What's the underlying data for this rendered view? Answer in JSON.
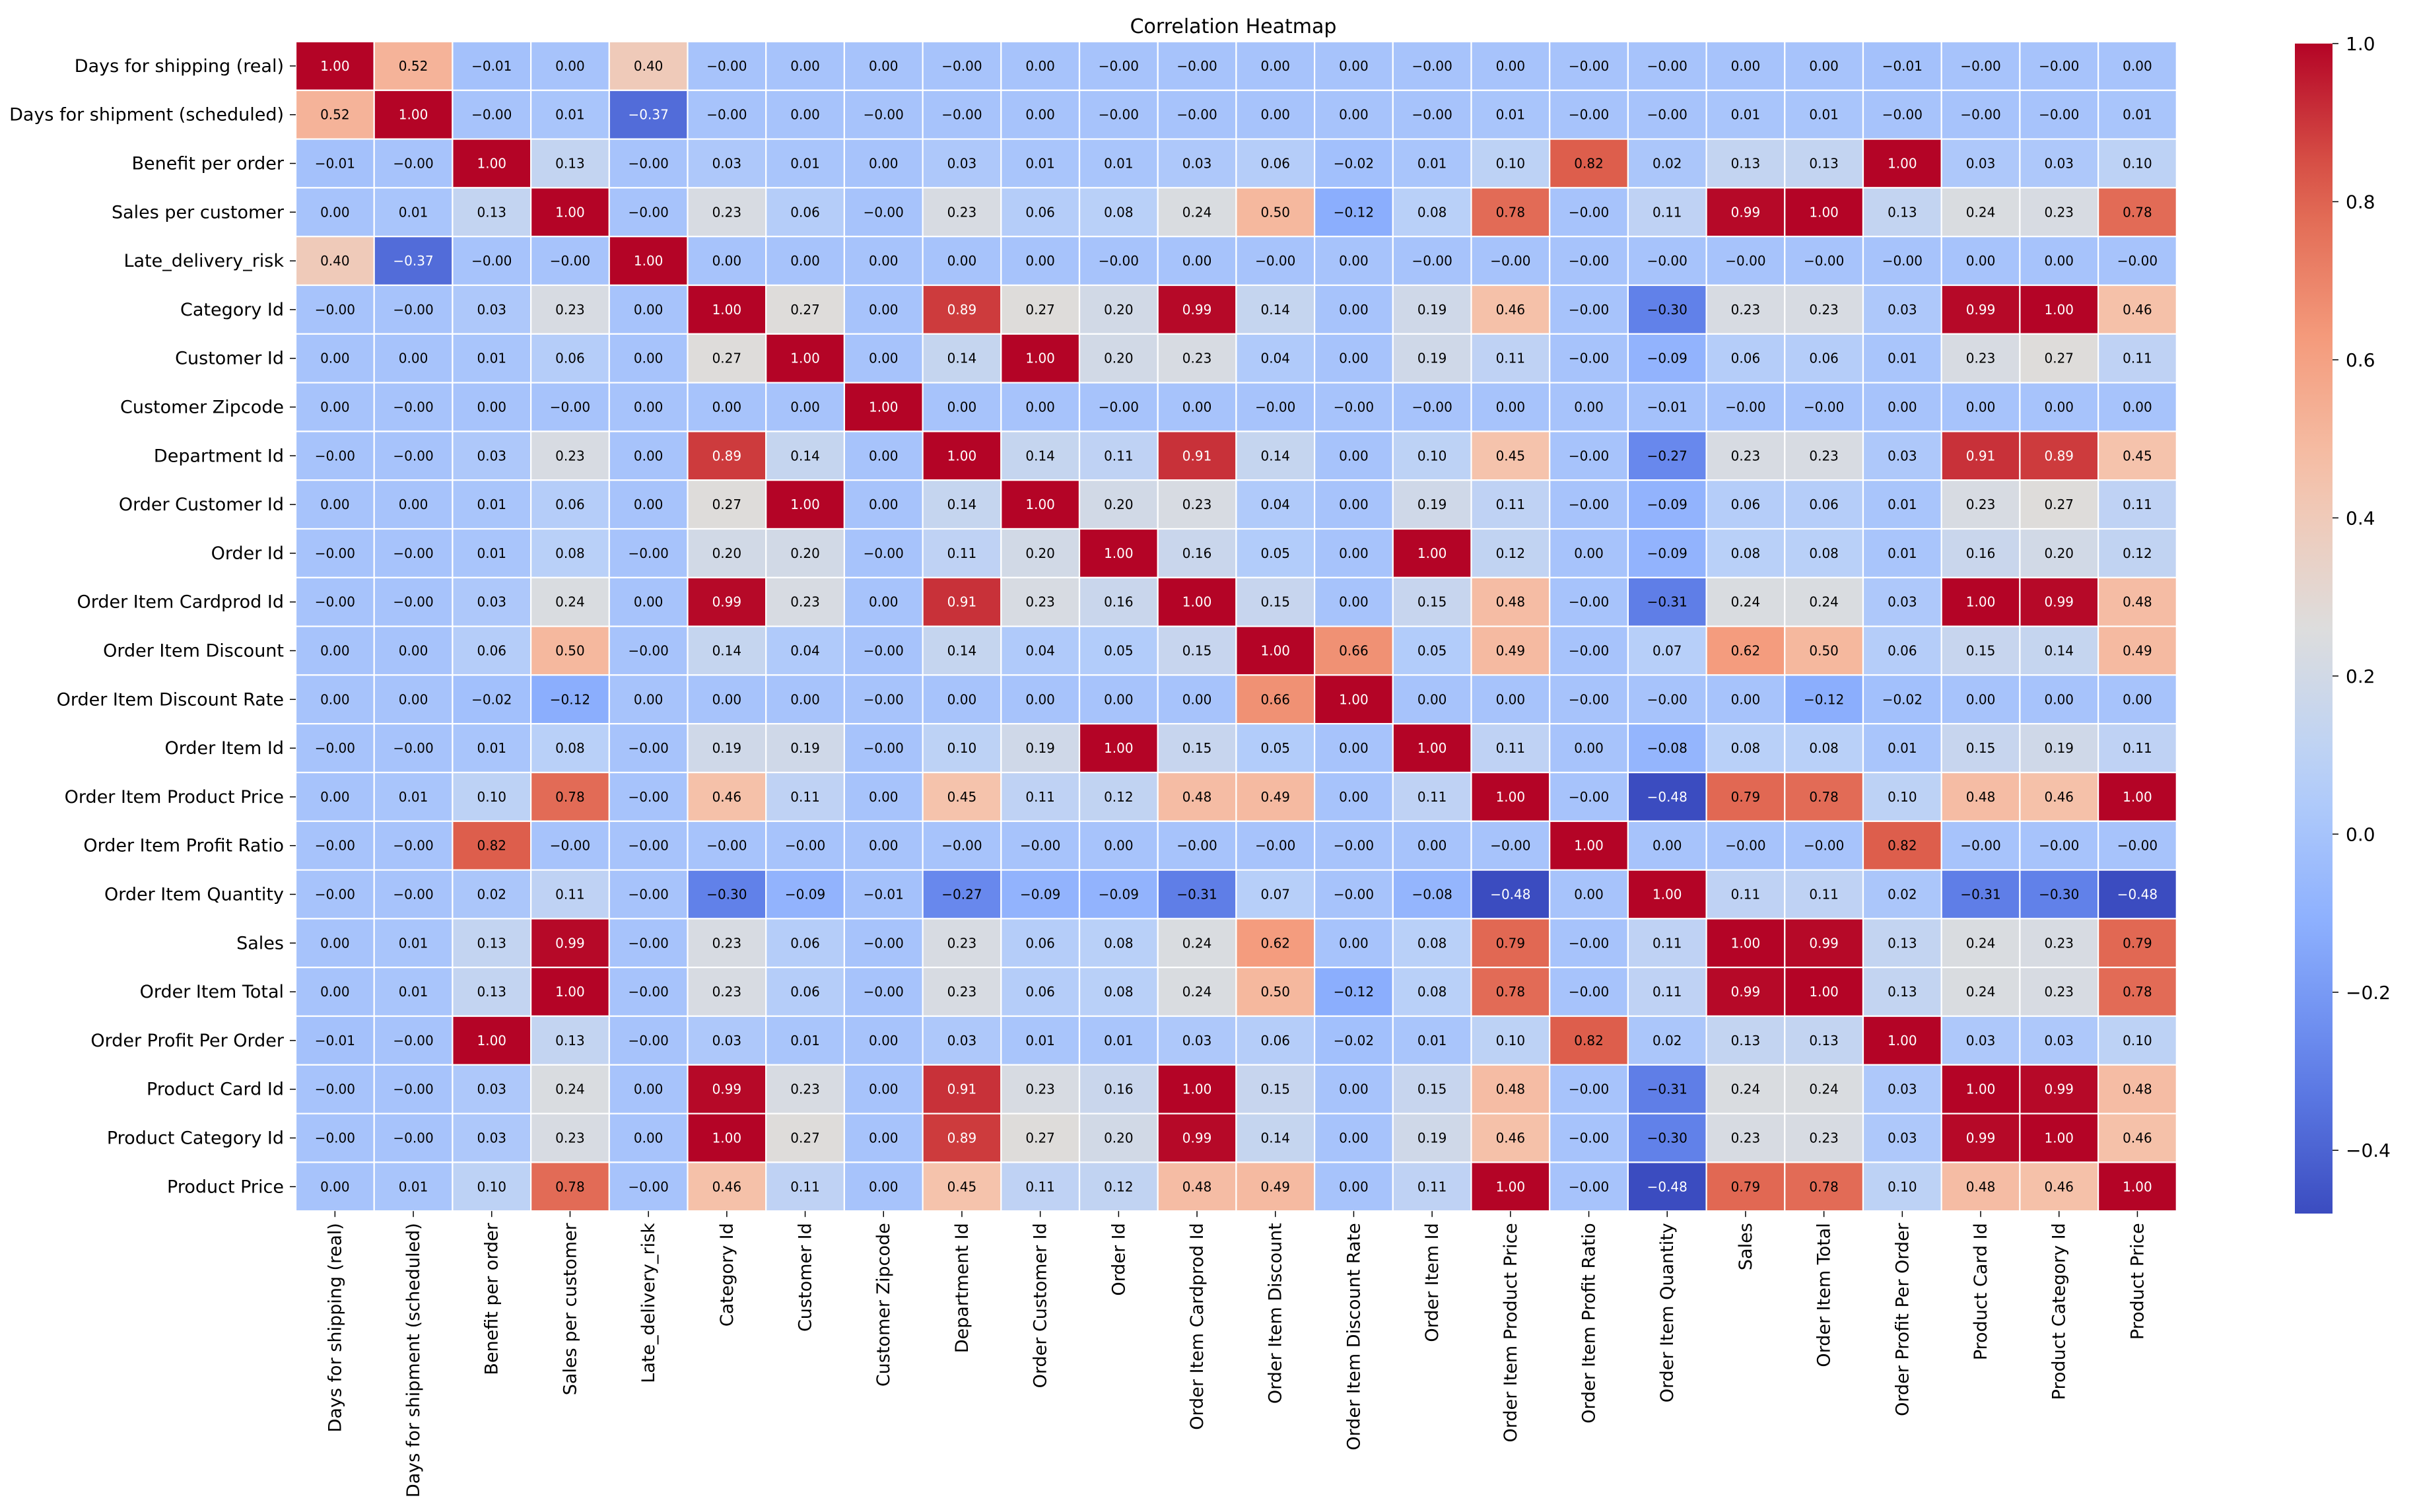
{
  "chart_data": {
    "type": "heatmap",
    "title": "Correlation Heatmap",
    "xlabel": "",
    "ylabel": "",
    "colormap": "coolwarm",
    "vmin": -0.48,
    "vmax": 1.0,
    "colorbar_ticks": [
      {
        "value": 1.0,
        "label": "1.0"
      },
      {
        "value": 0.8,
        "label": "0.8"
      },
      {
        "value": 0.6,
        "label": "0.6"
      },
      {
        "value": 0.4,
        "label": "0.4"
      },
      {
        "value": 0.2,
        "label": "0.2"
      },
      {
        "value": 0.0,
        "label": "0.0"
      },
      {
        "value": -0.2,
        "label": "−0.2"
      },
      {
        "value": -0.4,
        "label": "−0.4"
      }
    ],
    "labels": [
      "Days for shipping (real)",
      "Days for shipment (scheduled)",
      "Benefit per order",
      "Sales per customer",
      "Late_delivery_risk",
      "Category Id",
      "Customer Id",
      "Customer Zipcode",
      "Department Id",
      "Order Customer Id",
      "Order Id",
      "Order Item Cardprod Id",
      "Order Item Discount",
      "Order Item Discount Rate",
      "Order Item Id",
      "Order Item Product Price",
      "Order Item Profit Ratio",
      "Order Item Quantity",
      "Sales",
      "Order Item Total",
      "Order Profit Per Order",
      "Product Card Id",
      "Product Category Id",
      "Product Price"
    ],
    "values": [
      [
        1.0,
        0.52,
        -0.01,
        0.0,
        0.4,
        -0.0,
        0.0,
        0.0,
        -0.0,
        0.0,
        -0.0,
        -0.0,
        0.0,
        0.0,
        -0.0,
        0.0,
        -0.0,
        -0.0,
        0.0,
        0.0,
        -0.01,
        -0.0,
        -0.0,
        0.0
      ],
      [
        0.52,
        1.0,
        -0.0,
        0.01,
        -0.37,
        -0.0,
        0.0,
        -0.0,
        -0.0,
        0.0,
        -0.0,
        -0.0,
        0.0,
        0.0,
        -0.0,
        0.01,
        -0.0,
        -0.0,
        0.01,
        0.01,
        -0.0,
        -0.0,
        -0.0,
        0.01
      ],
      [
        -0.01,
        -0.0,
        1.0,
        0.13,
        -0.0,
        0.03,
        0.01,
        0.0,
        0.03,
        0.01,
        0.01,
        0.03,
        0.06,
        -0.02,
        0.01,
        0.1,
        0.82,
        0.02,
        0.13,
        0.13,
        1.0,
        0.03,
        0.03,
        0.1
      ],
      [
        0.0,
        0.01,
        0.13,
        1.0,
        -0.0,
        0.23,
        0.06,
        -0.0,
        0.23,
        0.06,
        0.08,
        0.24,
        0.5,
        -0.12,
        0.08,
        0.78,
        -0.0,
        0.11,
        0.99,
        1.0,
        0.13,
        0.24,
        0.23,
        0.78
      ],
      [
        0.4,
        -0.37,
        -0.0,
        -0.0,
        1.0,
        0.0,
        0.0,
        0.0,
        0.0,
        0.0,
        -0.0,
        0.0,
        -0.0,
        0.0,
        -0.0,
        -0.0,
        -0.0,
        -0.0,
        -0.0,
        -0.0,
        -0.0,
        0.0,
        0.0,
        -0.0
      ],
      [
        -0.0,
        -0.0,
        0.03,
        0.23,
        0.0,
        1.0,
        0.27,
        0.0,
        0.89,
        0.27,
        0.2,
        0.99,
        0.14,
        0.0,
        0.19,
        0.46,
        -0.0,
        -0.3,
        0.23,
        0.23,
        0.03,
        0.99,
        1.0,
        0.46
      ],
      [
        0.0,
        0.0,
        0.01,
        0.06,
        0.0,
        0.27,
        1.0,
        0.0,
        0.14,
        1.0,
        0.2,
        0.23,
        0.04,
        0.0,
        0.19,
        0.11,
        -0.0,
        -0.09,
        0.06,
        0.06,
        0.01,
        0.23,
        0.27,
        0.11
      ],
      [
        0.0,
        -0.0,
        0.0,
        -0.0,
        0.0,
        0.0,
        0.0,
        1.0,
        0.0,
        0.0,
        -0.0,
        0.0,
        -0.0,
        -0.0,
        -0.0,
        0.0,
        0.0,
        -0.01,
        -0.0,
        -0.0,
        0.0,
        0.0,
        0.0,
        0.0
      ],
      [
        -0.0,
        -0.0,
        0.03,
        0.23,
        0.0,
        0.89,
        0.14,
        0.0,
        1.0,
        0.14,
        0.11,
        0.91,
        0.14,
        0.0,
        0.1,
        0.45,
        -0.0,
        -0.27,
        0.23,
        0.23,
        0.03,
        0.91,
        0.89,
        0.45
      ],
      [
        0.0,
        0.0,
        0.01,
        0.06,
        0.0,
        0.27,
        1.0,
        0.0,
        0.14,
        1.0,
        0.2,
        0.23,
        0.04,
        0.0,
        0.19,
        0.11,
        -0.0,
        -0.09,
        0.06,
        0.06,
        0.01,
        0.23,
        0.27,
        0.11
      ],
      [
        -0.0,
        -0.0,
        0.01,
        0.08,
        -0.0,
        0.2,
        0.2,
        -0.0,
        0.11,
        0.2,
        1.0,
        0.16,
        0.05,
        0.0,
        1.0,
        0.12,
        0.0,
        -0.09,
        0.08,
        0.08,
        0.01,
        0.16,
        0.2,
        0.12
      ],
      [
        -0.0,
        -0.0,
        0.03,
        0.24,
        0.0,
        0.99,
        0.23,
        0.0,
        0.91,
        0.23,
        0.16,
        1.0,
        0.15,
        0.0,
        0.15,
        0.48,
        -0.0,
        -0.31,
        0.24,
        0.24,
        0.03,
        1.0,
        0.99,
        0.48
      ],
      [
        0.0,
        0.0,
        0.06,
        0.5,
        -0.0,
        0.14,
        0.04,
        -0.0,
        0.14,
        0.04,
        0.05,
        0.15,
        1.0,
        0.66,
        0.05,
        0.49,
        -0.0,
        0.07,
        0.62,
        0.5,
        0.06,
        0.15,
        0.14,
        0.49
      ],
      [
        0.0,
        0.0,
        -0.02,
        -0.12,
        0.0,
        0.0,
        0.0,
        -0.0,
        0.0,
        0.0,
        0.0,
        0.0,
        0.66,
        1.0,
        0.0,
        0.0,
        -0.0,
        -0.0,
        0.0,
        -0.12,
        -0.02,
        0.0,
        0.0,
        0.0
      ],
      [
        -0.0,
        -0.0,
        0.01,
        0.08,
        -0.0,
        0.19,
        0.19,
        -0.0,
        0.1,
        0.19,
        1.0,
        0.15,
        0.05,
        0.0,
        1.0,
        0.11,
        0.0,
        -0.08,
        0.08,
        0.08,
        0.01,
        0.15,
        0.19,
        0.11
      ],
      [
        0.0,
        0.01,
        0.1,
        0.78,
        -0.0,
        0.46,
        0.11,
        0.0,
        0.45,
        0.11,
        0.12,
        0.48,
        0.49,
        0.0,
        0.11,
        1.0,
        -0.0,
        -0.48,
        0.79,
        0.78,
        0.1,
        0.48,
        0.46,
        1.0
      ],
      [
        -0.0,
        -0.0,
        0.82,
        -0.0,
        -0.0,
        -0.0,
        -0.0,
        0.0,
        -0.0,
        -0.0,
        0.0,
        -0.0,
        -0.0,
        -0.0,
        0.0,
        -0.0,
        1.0,
        0.0,
        -0.0,
        -0.0,
        0.82,
        -0.0,
        -0.0,
        -0.0
      ],
      [
        -0.0,
        -0.0,
        0.02,
        0.11,
        -0.0,
        -0.3,
        -0.09,
        -0.01,
        -0.27,
        -0.09,
        -0.09,
        -0.31,
        0.07,
        -0.0,
        -0.08,
        -0.48,
        0.0,
        1.0,
        0.11,
        0.11,
        0.02,
        -0.31,
        -0.3,
        -0.48
      ],
      [
        0.0,
        0.01,
        0.13,
        0.99,
        -0.0,
        0.23,
        0.06,
        -0.0,
        0.23,
        0.06,
        0.08,
        0.24,
        0.62,
        0.0,
        0.08,
        0.79,
        -0.0,
        0.11,
        1.0,
        0.99,
        0.13,
        0.24,
        0.23,
        0.79
      ],
      [
        0.0,
        0.01,
        0.13,
        1.0,
        -0.0,
        0.23,
        0.06,
        -0.0,
        0.23,
        0.06,
        0.08,
        0.24,
        0.5,
        -0.12,
        0.08,
        0.78,
        -0.0,
        0.11,
        0.99,
        1.0,
        0.13,
        0.24,
        0.23,
        0.78
      ],
      [
        -0.01,
        -0.0,
        1.0,
        0.13,
        -0.0,
        0.03,
        0.01,
        0.0,
        0.03,
        0.01,
        0.01,
        0.03,
        0.06,
        -0.02,
        0.01,
        0.1,
        0.82,
        0.02,
        0.13,
        0.13,
        1.0,
        0.03,
        0.03,
        0.1
      ],
      [
        -0.0,
        -0.0,
        0.03,
        0.24,
        0.0,
        0.99,
        0.23,
        0.0,
        0.91,
        0.23,
        0.16,
        1.0,
        0.15,
        0.0,
        0.15,
        0.48,
        -0.0,
        -0.31,
        0.24,
        0.24,
        0.03,
        1.0,
        0.99,
        0.48
      ],
      [
        -0.0,
        -0.0,
        0.03,
        0.23,
        0.0,
        1.0,
        0.27,
        0.0,
        0.89,
        0.27,
        0.2,
        0.99,
        0.14,
        0.0,
        0.19,
        0.46,
        -0.0,
        -0.3,
        0.23,
        0.23,
        0.03,
        0.99,
        1.0,
        0.46
      ],
      [
        0.0,
        0.01,
        0.1,
        0.78,
        -0.0,
        0.46,
        0.11,
        0.0,
        0.45,
        0.11,
        0.12,
        0.48,
        0.49,
        0.0,
        0.11,
        1.0,
        -0.0,
        -0.48,
        0.79,
        0.78,
        0.1,
        0.48,
        0.46,
        1.0
      ]
    ]
  }
}
